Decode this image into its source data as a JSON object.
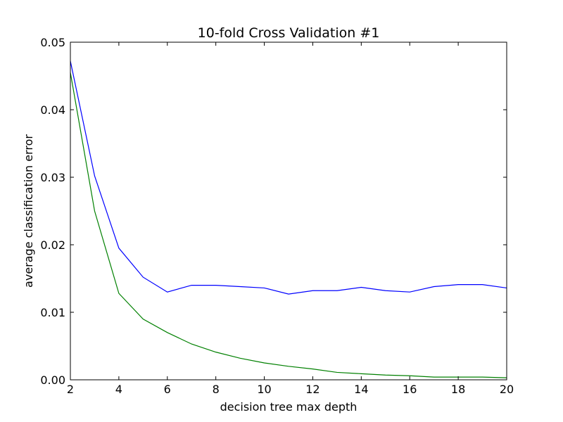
{
  "chart_data": {
    "type": "line",
    "title": "10-fold Cross Validation #1",
    "xlabel": "decision tree max depth",
    "ylabel": "average classification error",
    "xlim": [
      2,
      20
    ],
    "ylim": [
      0,
      0.05
    ],
    "xticks": [
      2,
      4,
      6,
      8,
      10,
      12,
      14,
      16,
      18,
      20
    ],
    "xtick_labels": [
      "2",
      "4",
      "6",
      "8",
      "10",
      "12",
      "14",
      "16",
      "18",
      "20"
    ],
    "yticks": [
      0,
      0.01,
      0.02,
      0.03,
      0.04,
      0.05
    ],
    "ytick_labels": [
      "0.00",
      "0.01",
      "0.02",
      "0.03",
      "0.04",
      "0.05"
    ],
    "grid": false,
    "x": [
      2,
      3,
      4,
      5,
      6,
      7,
      8,
      9,
      10,
      11,
      12,
      13,
      14,
      15,
      16,
      17,
      18,
      19,
      20
    ],
    "series": [
      {
        "color": "#0000ff",
        "values": [
          0.0472,
          0.0302,
          0.0195,
          0.0152,
          0.013,
          0.014,
          0.014,
          0.0138,
          0.0136,
          0.0127,
          0.0132,
          0.0132,
          0.0137,
          0.0132,
          0.013,
          0.0138,
          0.0141,
          0.0141,
          0.0136
        ]
      },
      {
        "color": "#008000",
        "values": [
          0.0455,
          0.025,
          0.0128,
          0.009,
          0.007,
          0.0053,
          0.0041,
          0.0032,
          0.0025,
          0.002,
          0.0016,
          0.0011,
          0.0009,
          0.0007,
          0.0006,
          0.0004,
          0.0004,
          0.0004,
          0.0003
        ]
      }
    ]
  }
}
